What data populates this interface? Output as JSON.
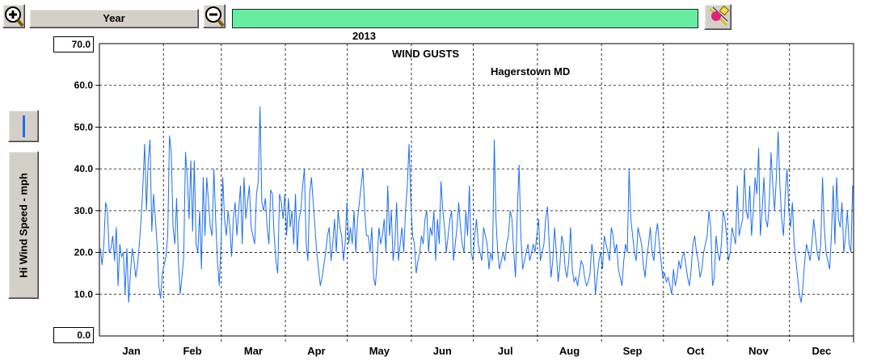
{
  "toolbar": {
    "zoom_in_icon": "zoom-in-magnifier-icon",
    "period_label": "Year",
    "zoom_out_icon": "zoom-out-magnifier-icon",
    "title_year": "2013",
    "title_text": "WIND GUSTS",
    "title_location": "Hagerstown MD",
    "tool_icon": "color-picker-icon",
    "title_bar_color": "#66eea0"
  },
  "side_panel": {
    "series_swatch_color": "#1e6ff0",
    "y_axis_label": "Hi Wind Speed - mph"
  },
  "y_axis": {
    "max_label": "70.0",
    "min_label": "0.0",
    "tick_labels": [
      "60.0",
      "50.0",
      "40.0",
      "30.0",
      "20.0",
      "10.0"
    ]
  },
  "chart_data": {
    "type": "line",
    "title": "2013 WIND GUSTS Hagerstown MD",
    "ylabel": "Hi Wind Speed - mph",
    "ylim": [
      0,
      70
    ],
    "grid": true,
    "line_color": "#1e6ff0",
    "x_unit": "day of year",
    "month_labels": [
      "Jan",
      "Feb",
      "Mar",
      "Apr",
      "May",
      "Jun",
      "Jul",
      "Aug",
      "Sep",
      "Oct",
      "Nov",
      "Dec"
    ],
    "month_days": [
      31,
      28,
      31,
      30,
      31,
      30,
      31,
      31,
      30,
      31,
      30,
      31
    ],
    "series": [
      {
        "values": [
          21,
          17,
          22,
          32,
          30,
          20,
          21,
          24,
          18,
          26,
          12,
          22,
          19,
          20,
          10,
          21,
          8,
          15,
          21,
          18,
          14,
          17,
          22,
          28,
          36,
          46,
          30,
          42,
          47,
          25,
          34,
          28,
          22,
          12,
          9,
          15,
          17,
          19,
          24,
          48,
          44,
          26,
          22,
          33,
          18,
          10,
          14,
          19,
          44,
          38,
          28,
          42,
          25,
          42,
          22,
          20,
          30,
          16,
          38,
          24,
          38,
          32,
          26,
          24,
          40,
          28,
          18,
          12,
          22,
          38,
          28,
          24,
          30,
          26,
          19,
          28,
          32,
          24,
          30,
          36,
          22,
          38,
          28,
          32,
          36,
          26,
          24,
          22,
          34,
          37,
          55,
          32,
          30,
          33,
          26,
          22,
          35,
          34,
          24,
          18,
          15,
          34,
          32,
          28,
          34,
          24,
          33,
          26,
          30,
          22,
          34,
          20,
          28,
          30,
          36,
          40,
          22,
          18,
          34,
          38,
          32,
          26,
          20,
          16,
          12,
          14,
          17,
          20,
          24,
          26,
          18,
          22,
          28,
          20,
          30,
          26,
          24,
          18,
          22,
          32,
          22,
          26,
          22,
          30,
          20,
          28,
          32,
          36,
          40,
          30,
          24,
          24,
          20,
          26,
          14,
          12,
          18,
          26,
          22,
          24,
          28,
          20,
          36,
          24,
          30,
          18,
          22,
          32,
          18,
          22,
          26,
          20,
          30,
          36,
          46,
          32,
          24,
          22,
          15,
          18,
          20,
          24,
          22,
          28,
          30,
          20,
          26,
          24,
          30,
          18,
          28,
          22,
          37,
          30,
          26,
          20,
          24,
          28,
          30,
          18,
          22,
          26,
          32,
          26,
          22,
          20,
          30,
          24,
          36,
          20,
          18,
          24,
          28,
          22,
          20,
          18,
          26,
          24,
          22,
          16,
          20,
          18,
          47,
          28,
          20,
          16,
          18,
          20,
          18,
          22,
          24,
          30,
          28,
          20,
          14,
          30,
          41,
          24,
          16,
          18,
          20,
          22,
          18,
          20,
          22,
          20,
          24,
          28,
          18,
          20,
          22,
          28,
          31,
          22,
          14,
          18,
          26,
          20,
          13,
          17,
          24,
          22,
          16,
          14,
          18,
          26,
          16,
          13,
          14,
          12,
          15,
          18,
          17,
          14,
          12,
          13,
          15,
          22,
          19,
          10,
          14,
          18,
          20,
          16,
          24,
          22,
          20,
          18,
          26,
          24,
          20,
          22,
          16,
          14,
          12,
          18,
          22,
          20,
          40,
          28,
          24,
          20,
          18,
          26,
          24,
          22,
          17,
          14,
          19,
          22,
          26,
          20,
          18,
          24,
          27,
          22,
          18,
          14,
          15,
          13,
          14,
          12,
          10,
          16,
          12,
          14,
          18,
          16,
          19,
          20,
          17,
          14,
          12,
          16,
          22,
          24,
          20,
          18,
          14,
          16,
          20,
          22,
          24,
          30,
          26,
          12,
          14,
          24,
          20,
          18,
          22,
          30,
          28,
          24,
          18,
          20,
          26,
          24,
          22,
          36,
          24,
          26,
          28,
          40,
          30,
          28,
          36,
          24,
          30,
          38,
          34,
          45,
          24,
          30,
          38,
          28,
          26,
          32,
          44,
          36,
          30,
          38,
          49,
          36,
          28,
          24,
          34,
          40,
          30,
          26,
          32,
          22,
          18,
          14,
          10,
          8,
          12,
          18,
          22,
          20,
          18,
          22,
          28,
          24,
          20,
          18,
          22,
          38,
          26,
          20,
          18,
          16,
          24,
          36,
          22,
          38,
          28,
          26,
          32,
          20,
          24,
          30,
          22,
          20,
          36
        ]
      }
    ]
  }
}
